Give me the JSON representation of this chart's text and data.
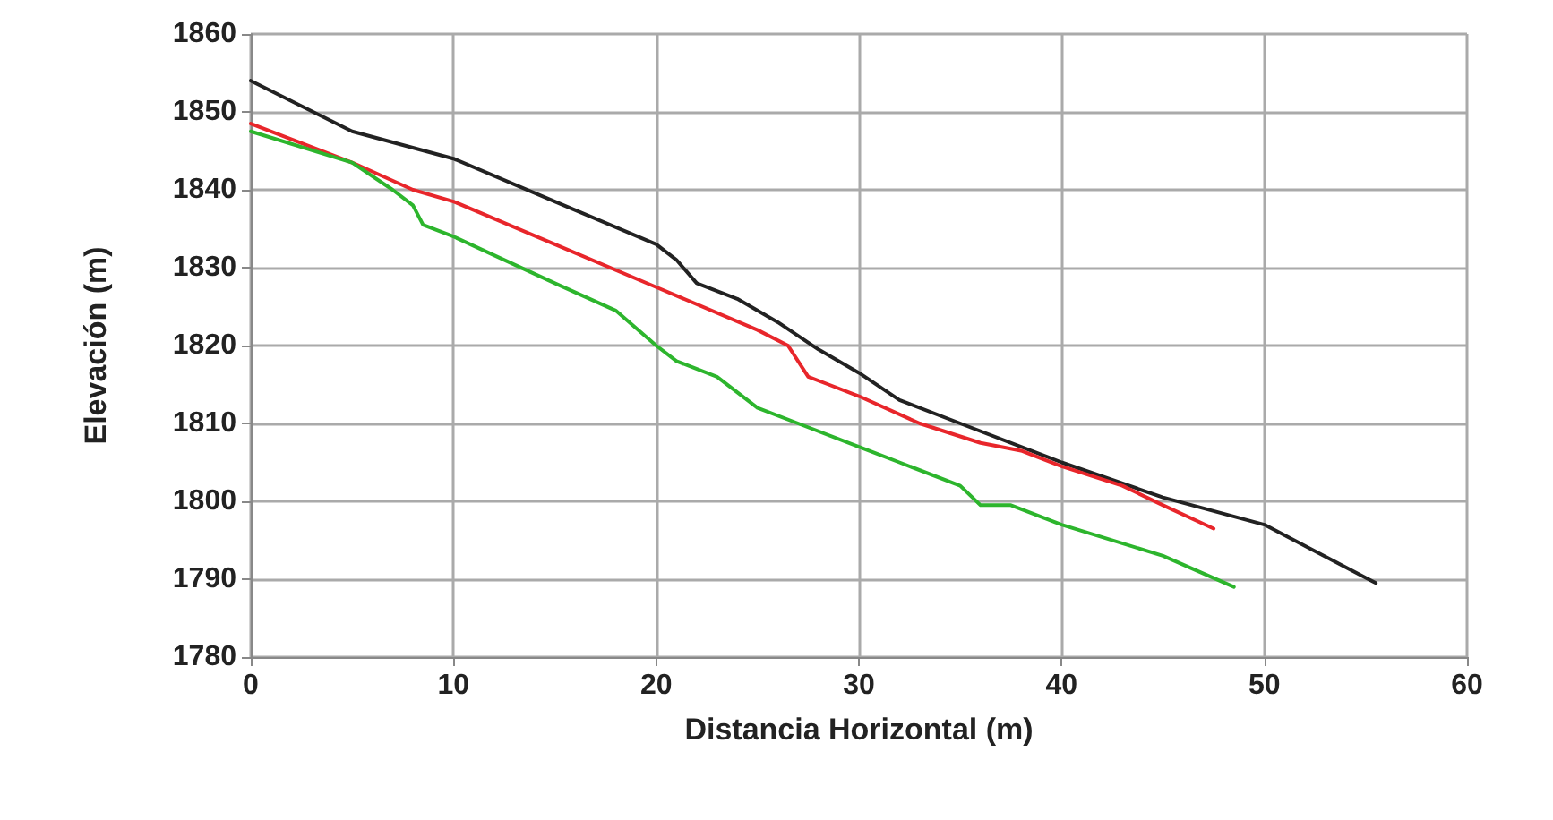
{
  "chart_data": {
    "type": "line",
    "xlabel": "Distancia Horizontal (m)",
    "ylabel": "Elevación (m)",
    "xlim": [
      0,
      60
    ],
    "xticks": [
      0,
      10,
      20,
      30,
      40,
      50,
      60
    ],
    "ylim": [
      1780,
      1860
    ],
    "yticks": [
      1780,
      1790,
      1800,
      1810,
      1820,
      1830,
      1840,
      1850,
      1860
    ],
    "grid": true,
    "marker": "none",
    "line_style": "solid",
    "series": [
      {
        "color": "#222222",
        "x": [
          0,
          5,
          10,
          15,
          20,
          21,
          22,
          24,
          26,
          28,
          30,
          32,
          35,
          40,
          45,
          50,
          55.5
        ],
        "values": [
          1854,
          1847.5,
          1844,
          1838.5,
          1833,
          1831,
          1828,
          1826,
          1823,
          1819.5,
          1816.5,
          1813,
          1810,
          1805,
          1800.5,
          1797,
          1789.5
        ]
      },
      {
        "color": "#e8262b",
        "x": [
          0,
          5,
          8,
          10,
          15,
          20,
          25,
          26.5,
          27.5,
          28.5,
          30,
          33,
          36,
          38,
          40,
          43,
          45,
          47.5
        ],
        "values": [
          1848.5,
          1843.5,
          1840,
          1838.5,
          1833,
          1827.5,
          1822,
          1820,
          1816,
          1815,
          1813.5,
          1810,
          1807.5,
          1806.5,
          1804.5,
          1802,
          1799.5,
          1796.5
        ]
      },
      {
        "color": "#2db52d",
        "x": [
          0,
          5,
          7,
          8,
          8.5,
          10,
          15,
          18,
          20,
          21,
          23,
          25,
          27,
          30,
          32,
          35,
          36,
          37.5,
          40,
          45,
          48.5
        ],
        "values": [
          1847.5,
          1843.5,
          1840,
          1838,
          1835.5,
          1834,
          1828,
          1824.5,
          1820,
          1818,
          1816,
          1812,
          1810,
          1807,
          1805,
          1802,
          1799.5,
          1799.5,
          1797,
          1793,
          1789
        ]
      }
    ]
  }
}
